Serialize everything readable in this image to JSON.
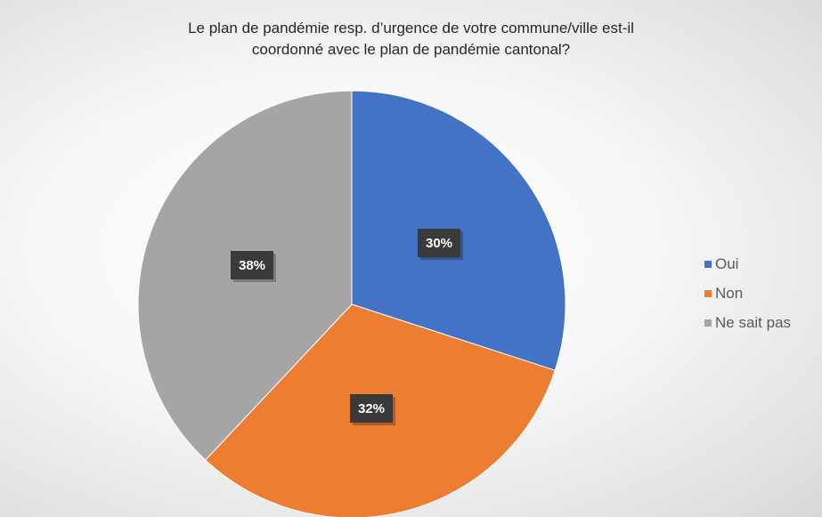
{
  "chart_data": {
    "type": "pie",
    "title_lines": [
      "Le plan de pandémie resp. d’urgence de votre commune/ville est-il",
      "coordonné avec le plan de pandémie cantonal?"
    ],
    "categories": [
      "Oui",
      "Non",
      "Ne sait pas"
    ],
    "values": [
      30,
      32,
      38
    ],
    "labels": [
      "30%",
      "32%",
      "38%"
    ],
    "colors": [
      "#4472C4",
      "#ED7D31",
      "#A5A5A5"
    ],
    "legend_position": "right"
  }
}
